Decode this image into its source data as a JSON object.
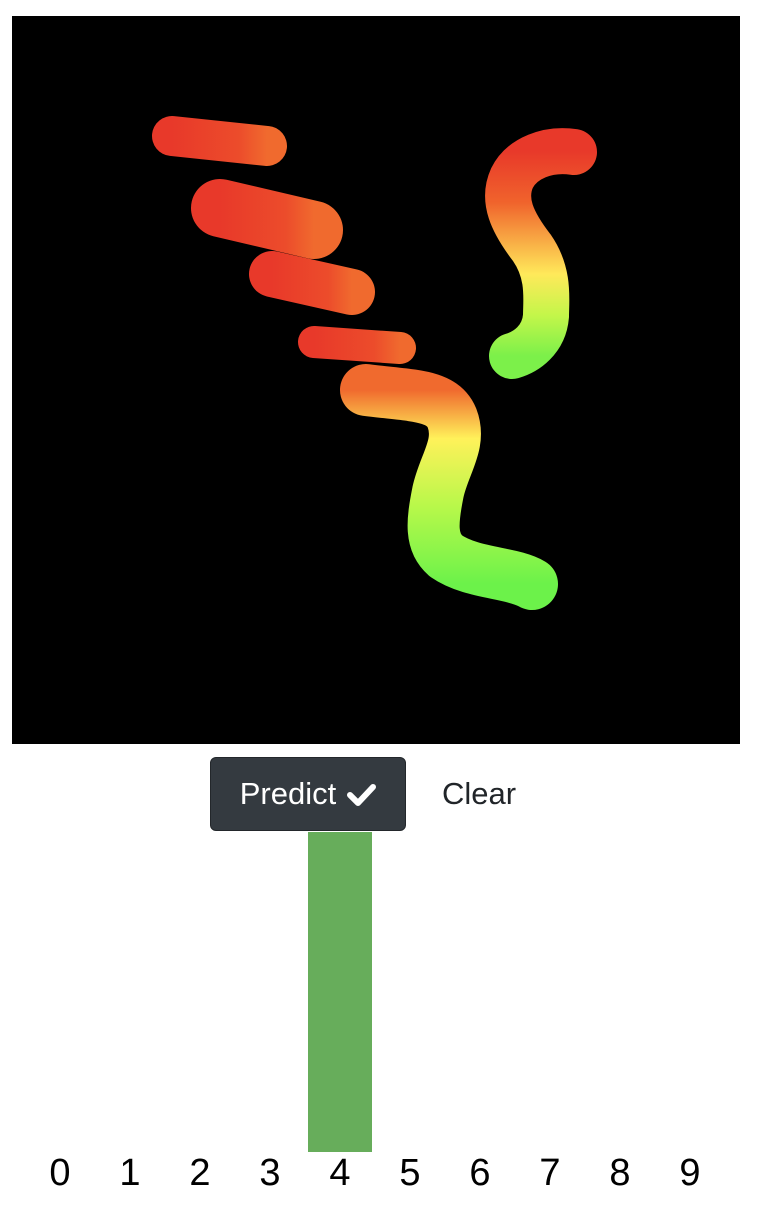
{
  "controls": {
    "predict_label": "Predict",
    "predict_icon": "check-icon",
    "clear_label": "Clear",
    "predict_bg": "#343a40"
  },
  "canvas": {
    "background": "#000000",
    "stroke_gradient": [
      "#e8392a",
      "#f06a2e",
      "#fff15a",
      "#b8f84a",
      "#6cf24a"
    ]
  },
  "chart_data": {
    "type": "bar",
    "categories": [
      "0",
      "1",
      "2",
      "3",
      "4",
      "5",
      "6",
      "7",
      "8",
      "9"
    ],
    "values": [
      0,
      0,
      0,
      0,
      1,
      0,
      0,
      0,
      0,
      0
    ],
    "ylim": [
      0,
      1
    ],
    "bar_color": "#67ad5b",
    "grid": false
  }
}
